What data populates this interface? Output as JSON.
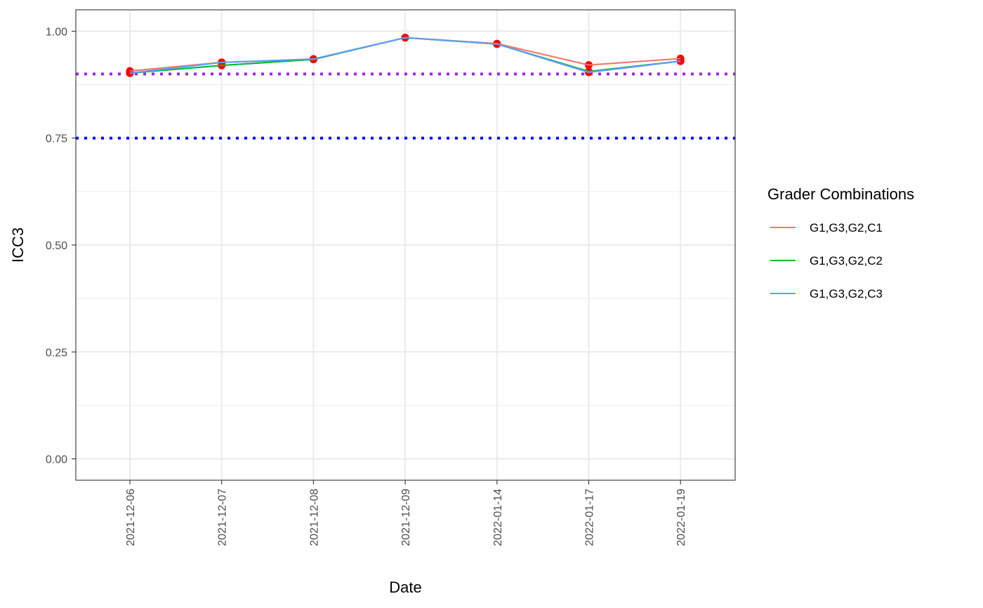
{
  "chart_data": {
    "type": "line",
    "xlabel": "Date",
    "ylabel": "ICC3",
    "x": [
      "2021-12-06",
      "2021-12-07",
      "2021-12-08",
      "2021-12-09",
      "2022-01-14",
      "2022-01-17",
      "2022-01-19"
    ],
    "yticks": [
      "0.00",
      "0.25",
      "0.50",
      "0.75",
      "1.00"
    ],
    "ylim": [
      -0.05,
      1.05
    ],
    "grid": true,
    "legend": {
      "title": "Grader Combinations",
      "placement": "right"
    },
    "series": [
      {
        "name": "G1,G3,G2,C1",
        "color": "#F8766D",
        "values": [
          0.907,
          0.927,
          0.934,
          0.985,
          0.971,
          0.921,
          0.936
        ]
      },
      {
        "name": "G1,G3,G2,C2",
        "color": "#00BA38",
        "values": [
          0.902,
          0.92,
          0.934,
          0.985,
          0.97,
          0.906,
          0.93
        ]
      },
      {
        "name": "G1,G3,G2,C3",
        "color": "#619CFF",
        "values": [
          0.902,
          0.927,
          0.935,
          0.985,
          0.97,
          0.904,
          0.93
        ]
      }
    ],
    "reference_lines": [
      {
        "y": 0.9,
        "color": "#A020F0",
        "style": "dotted"
      },
      {
        "y": 0.75,
        "color": "#0000FF",
        "style": "dotted"
      }
    ],
    "point_color": "#FF0000"
  }
}
